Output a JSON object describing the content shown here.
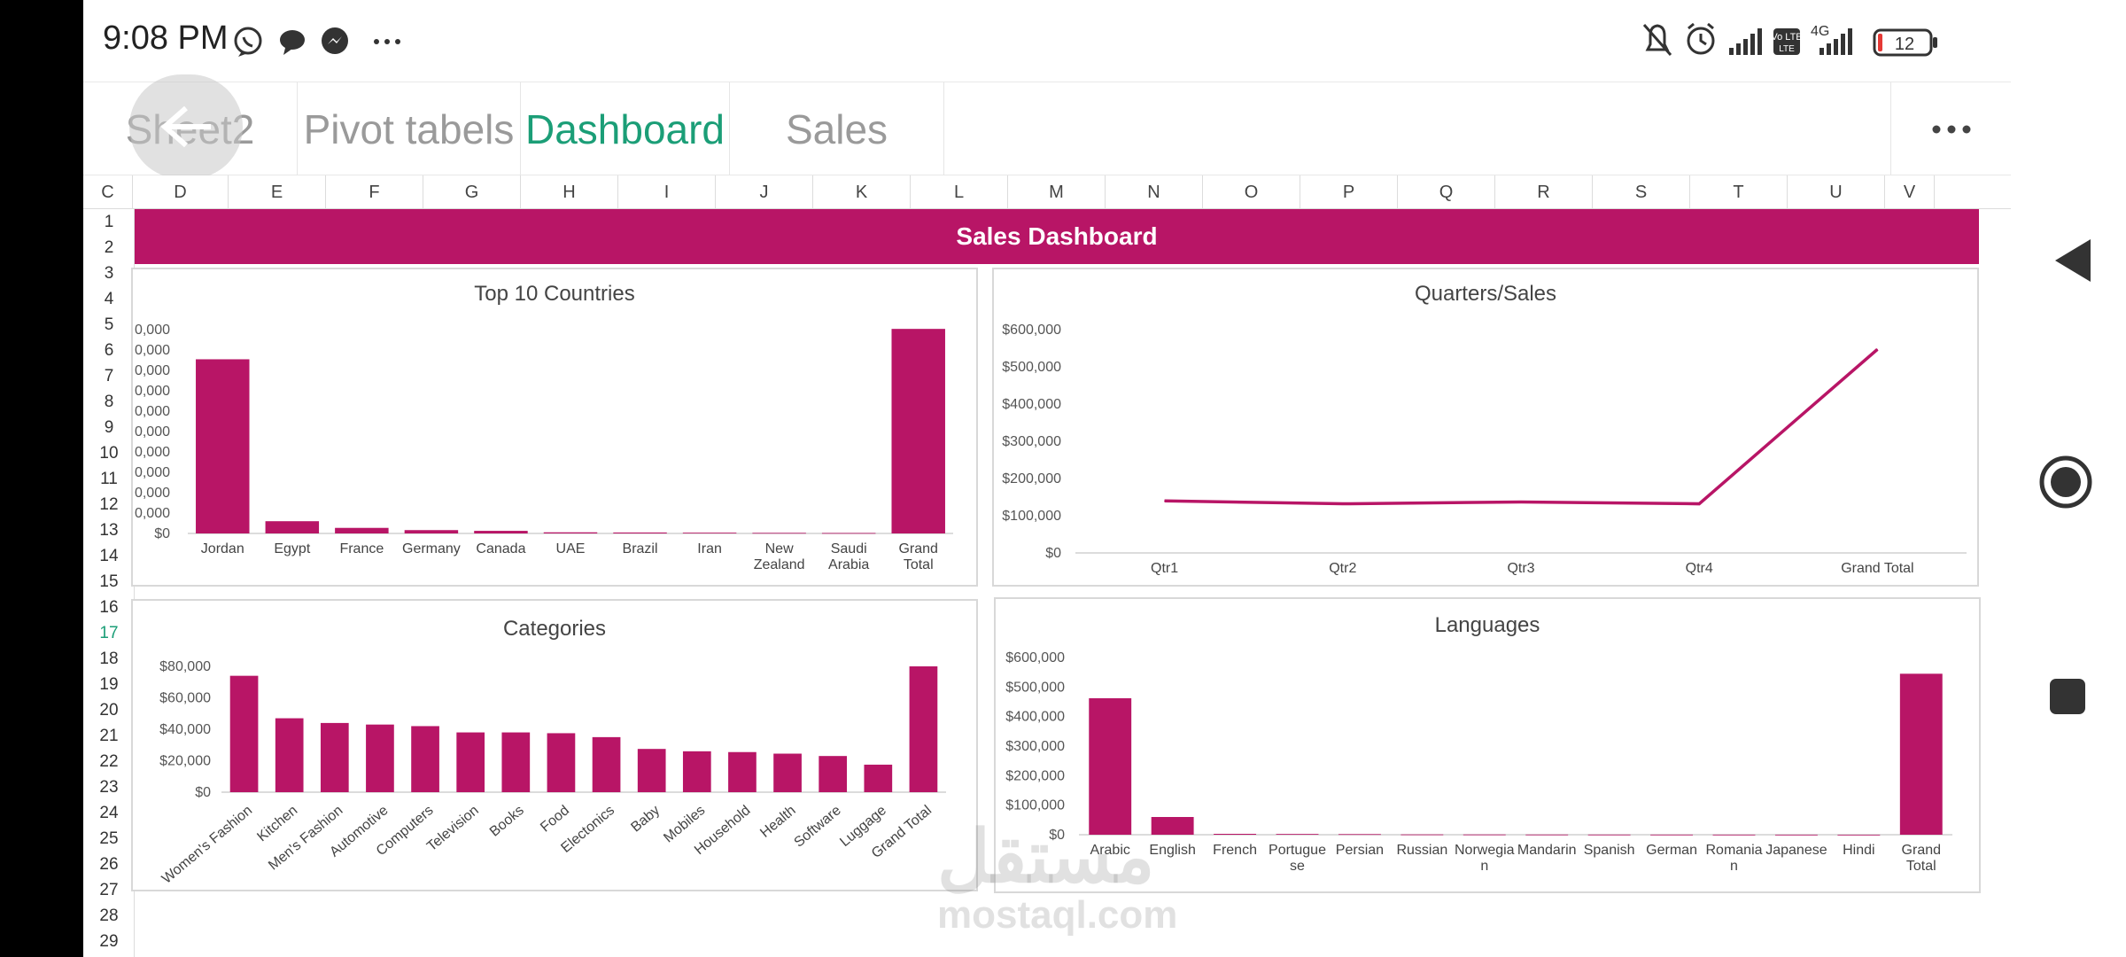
{
  "status": {
    "time": "9:08 PM",
    "network": "4G",
    "volte": "Vo LTE",
    "battery": "12"
  },
  "tabs": [
    {
      "label": "Sheet2"
    },
    {
      "label": "Pivot tabels"
    },
    {
      "label": "Dashboard"
    },
    {
      "label": "Sales"
    }
  ],
  "active_tab": "Dashboard",
  "columns": [
    "C",
    "D",
    "E",
    "F",
    "G",
    "H",
    "I",
    "J",
    "K",
    "L",
    "M",
    "N",
    "O",
    "P",
    "Q",
    "R",
    "S",
    "T",
    "U",
    "V"
  ],
  "rows": [
    "1",
    "2",
    "3",
    "4",
    "5",
    "6",
    "7",
    "8",
    "9",
    "10",
    "11",
    "12",
    "13",
    "14",
    "15",
    "16",
    "17",
    "18",
    "19",
    "20",
    "21",
    "22",
    "23",
    "24",
    "25",
    "26",
    "27",
    "28",
    "29"
  ],
  "selected_row": "17",
  "banner": "Sales Dashboard",
  "watermark": {
    "arabic": "مستقل",
    "latin": "mostaql.com"
  },
  "chart_data": [
    {
      "type": "bar",
      "title": "Top 10 Countries",
      "categories": [
        "Jordan",
        "Egypt",
        "France",
        "Germany",
        "Canada",
        "UAE",
        "Brazil",
        "Iran",
        "New Zealand",
        "Saudi Arabia",
        "Grand Total"
      ],
      "values": [
        470000,
        33000,
        15000,
        9000,
        7000,
        3000,
        2500,
        2000,
        1500,
        1200,
        552000
      ],
      "yticks": [
        "$0",
        "0,000",
        "0,000",
        "0,000",
        "0,000",
        "0,000",
        "0,000",
        "0,000",
        "0,000",
        "0,000",
        "0,000"
      ],
      "ylim": [
        0,
        550000
      ],
      "color": "#b81566"
    },
    {
      "type": "line",
      "title": "Quarters/Sales",
      "categories": [
        "Qtr1",
        "Qtr2",
        "Qtr3",
        "Qtr4",
        "Grand Total"
      ],
      "values": [
        140000,
        132000,
        137000,
        132000,
        547000
      ],
      "yticks": [
        "$0",
        "$100,000",
        "$200,000",
        "$300,000",
        "$400,000",
        "$500,000",
        "$600,000"
      ],
      "ylim": [
        0,
        600000
      ],
      "color": "#b81566"
    },
    {
      "type": "bar",
      "title": "Categories",
      "categories": [
        "Women's Fashion",
        "Kitchen",
        "Men's Fashion",
        "Automotive",
        "Computers",
        "Television",
        "Books",
        "Food",
        "Electonics",
        "Baby",
        "Mobiles",
        "Household",
        "Health",
        "Software",
        "Luggage",
        "Grand Total"
      ],
      "values": [
        74000,
        47000,
        44000,
        43000,
        42000,
        38000,
        38000,
        37500,
        35000,
        27500,
        26000,
        25500,
        24500,
        23000,
        17500,
        80000
      ],
      "yticks": [
        "$0",
        "$20,000",
        "$40,000",
        "$60,000",
        "$80,000"
      ],
      "ylim": [
        0,
        80000
      ],
      "color": "#b81566"
    },
    {
      "type": "bar",
      "title": "Languages",
      "categories": [
        "Arabic",
        "English",
        "French",
        "Portuguese",
        "Persian",
        "Russian",
        "Norwegian",
        "Mandarin",
        "Spanish",
        "German",
        "Romanian",
        "Japanese",
        "Hindi",
        "Grand Total"
      ],
      "labels": [
        "Arabic",
        "English",
        "French",
        "Portugue se",
        "Persian",
        "Russian",
        "Norwegia n",
        "Mandarin",
        "Spanish",
        "German",
        "Romania n",
        "Japanese",
        "Hindi",
        "Grand Total"
      ],
      "values": [
        462000,
        60000,
        3000,
        2500,
        2000,
        1000,
        800,
        600,
        500,
        400,
        300,
        200,
        100,
        545000
      ],
      "yticks": [
        "$0",
        "$100,000",
        "$200,000",
        "$300,000",
        "$400,000",
        "$500,000",
        "$600,000"
      ],
      "ylim": [
        0,
        600000
      ],
      "color": "#b81566"
    }
  ]
}
